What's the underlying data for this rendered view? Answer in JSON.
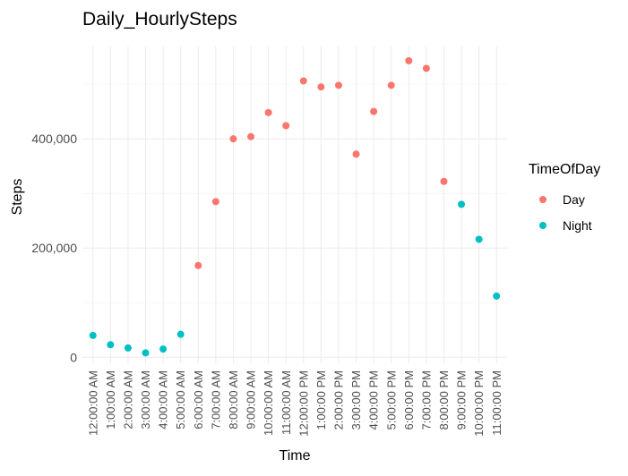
{
  "chart_data": {
    "type": "scatter",
    "title": "Daily_HourlySteps",
    "xlabel": "Time",
    "ylabel": "Steps",
    "categories": [
      "12:00:00 AM",
      "1:00:00 AM",
      "2:00:00 AM",
      "3:00:00 AM",
      "4:00:00 AM",
      "5:00:00 AM",
      "6:00:00 AM",
      "7:00:00 AM",
      "8:00:00 AM",
      "9:00:00 AM",
      "10:00:00 AM",
      "11:00:00 AM",
      "12:00:00 PM",
      "1:00:00 PM",
      "2:00:00 PM",
      "3:00:00 PM",
      "4:00:00 PM",
      "5:00:00 PM",
      "6:00:00 PM",
      "7:00:00 PM",
      "8:00:00 PM",
      "9:00:00 PM",
      "10:00:00 PM",
      "11:00:00 PM"
    ],
    "values": [
      40000,
      23000,
      17000,
      8000,
      15000,
      42000,
      168000,
      285000,
      400000,
      404000,
      448000,
      424000,
      506000,
      495000,
      498000,
      372000,
      450000,
      498000,
      543000,
      529000,
      322000,
      280000,
      216000,
      112000
    ],
    "groups": [
      "Night",
      "Night",
      "Night",
      "Night",
      "Night",
      "Night",
      "Day",
      "Day",
      "Day",
      "Day",
      "Day",
      "Day",
      "Day",
      "Day",
      "Day",
      "Day",
      "Day",
      "Day",
      "Day",
      "Day",
      "Day",
      "Night",
      "Night",
      "Night"
    ],
    "y_ticks": [
      0,
      200000,
      400000
    ],
    "y_tick_labels": [
      "0",
      "200,000",
      "400,000"
    ],
    "ylim": [
      -11000,
      569000
    ],
    "grid": true,
    "legend": {
      "title": "TimeOfDay",
      "placement": "right",
      "entries": [
        {
          "name": "Day",
          "color": "#F8766D"
        },
        {
          "name": "Night",
          "color": "#00BFC4"
        }
      ]
    }
  }
}
